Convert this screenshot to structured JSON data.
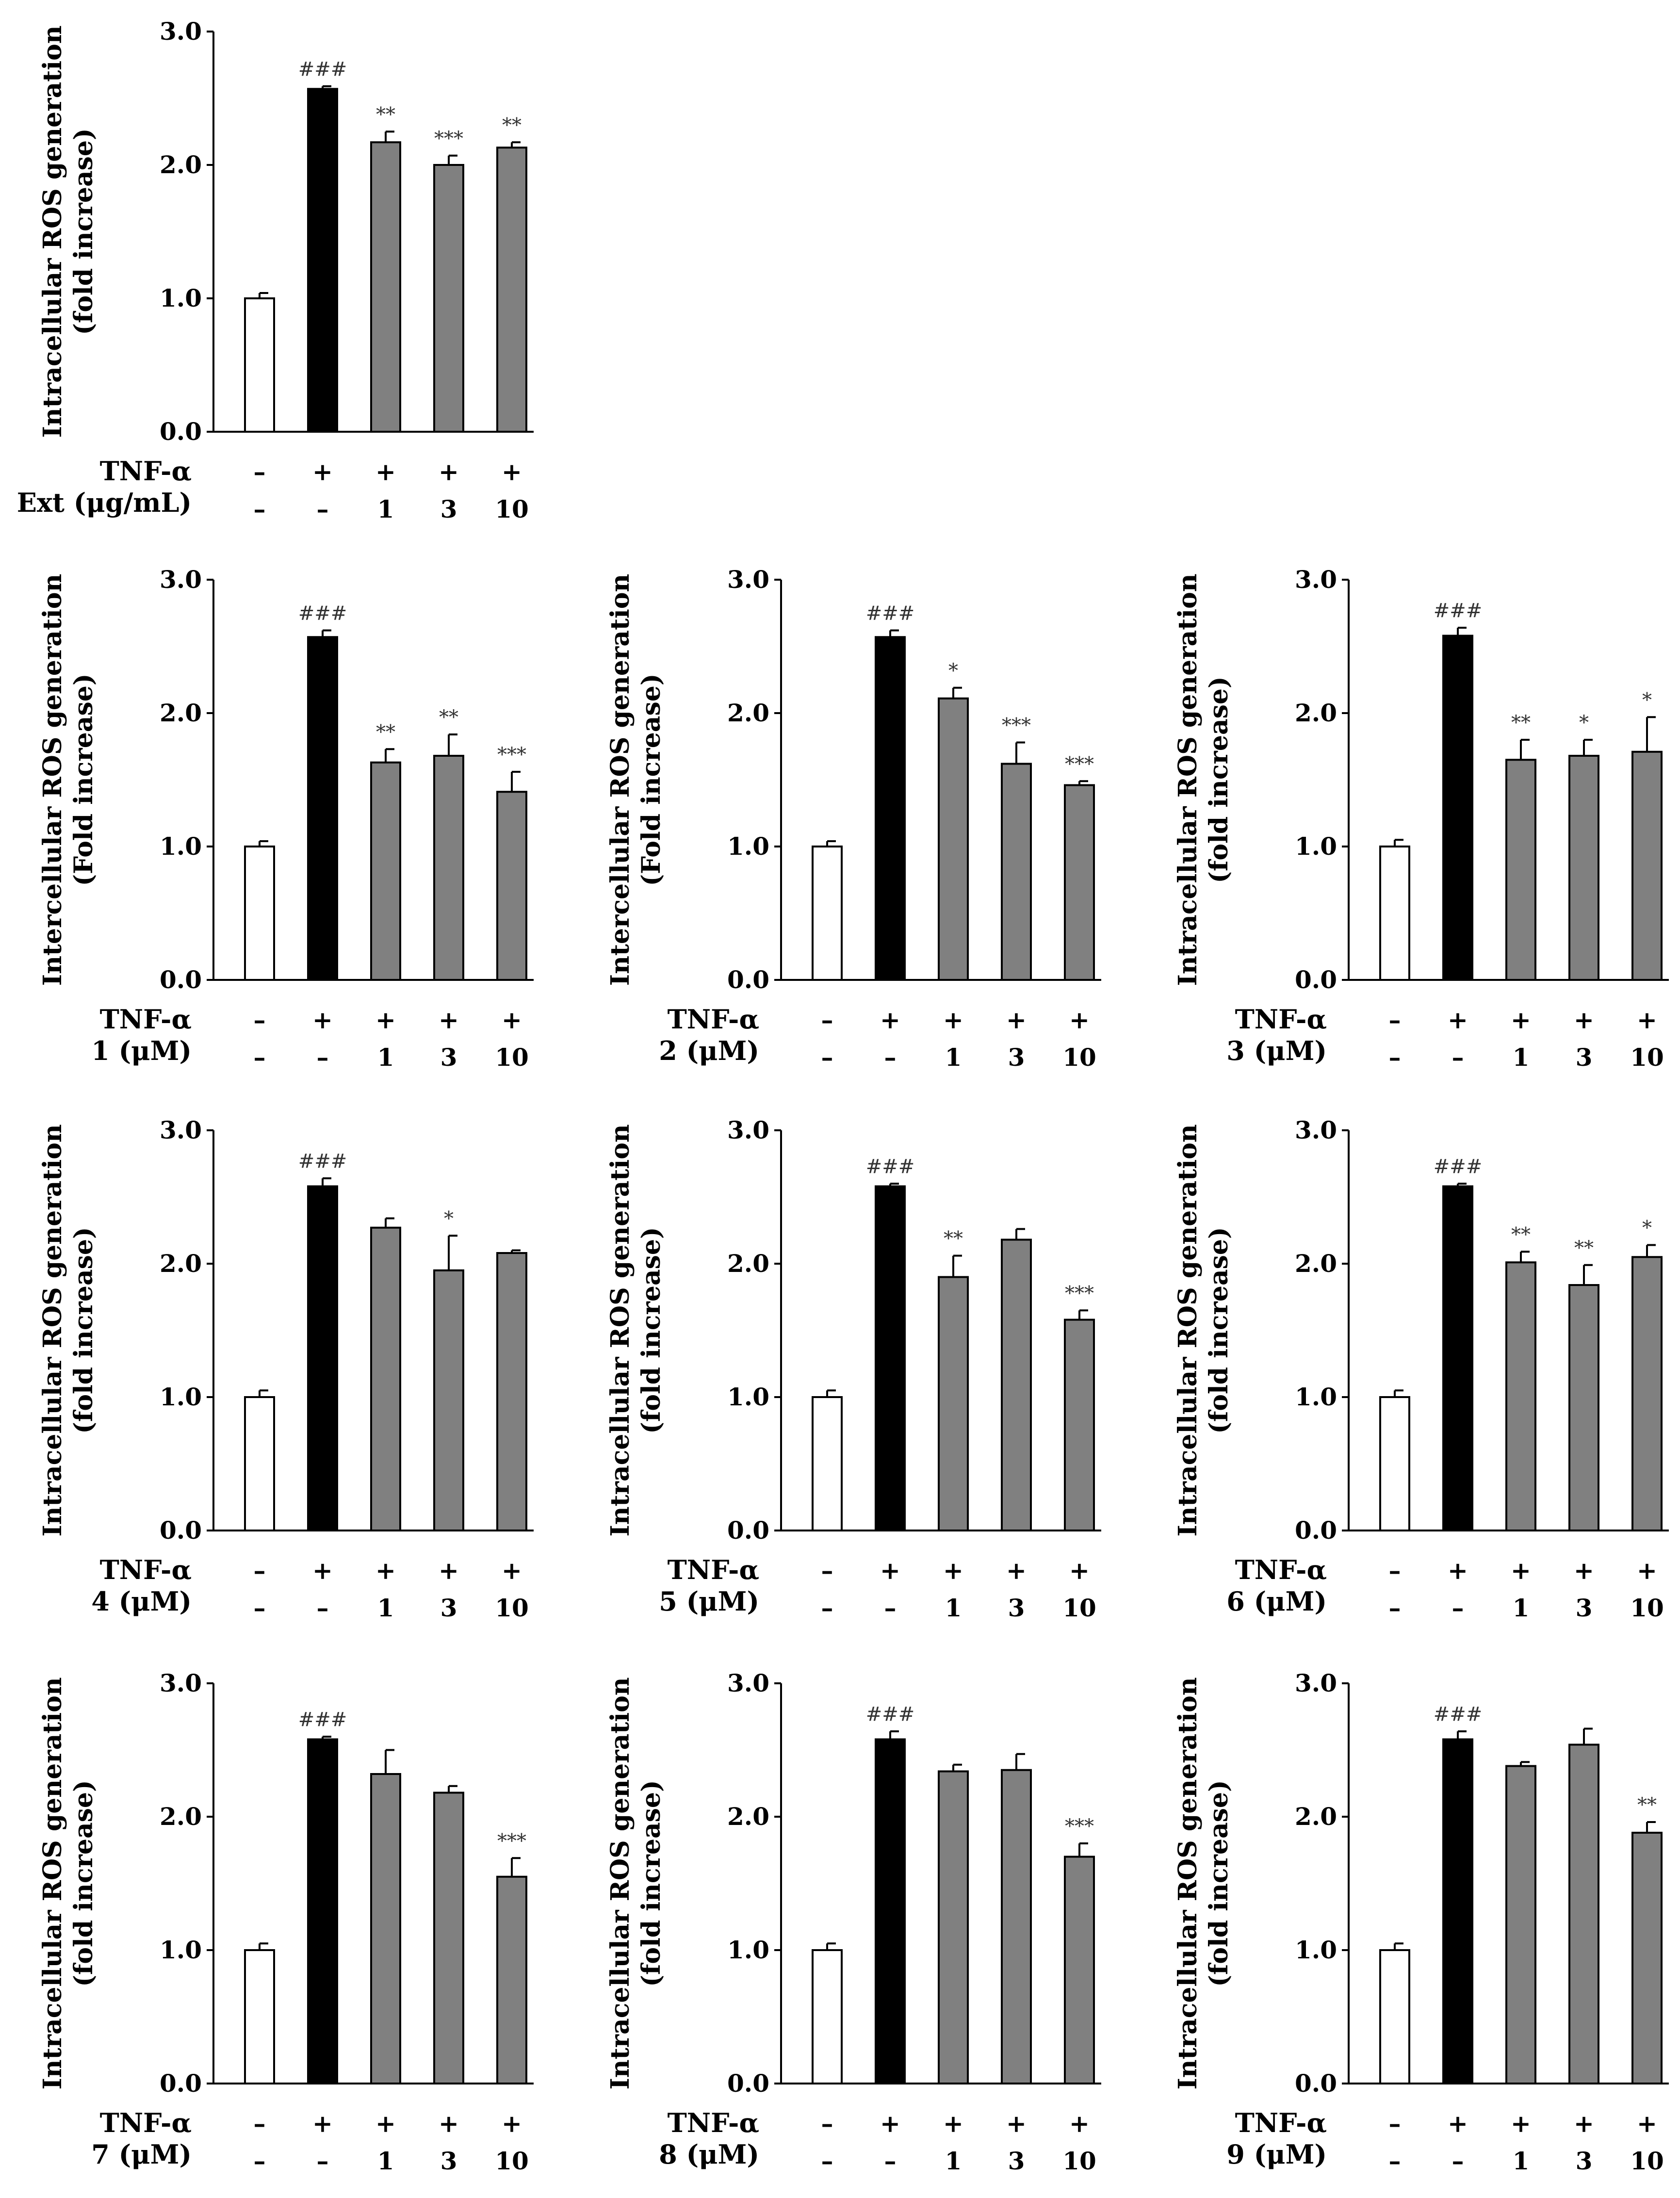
{
  "colors": {
    "control": "#ffffff",
    "tnf": "#000000",
    "treated": "#808080",
    "axis": "#000000"
  },
  "chart_data": [
    {
      "type": "bar",
      "ylabel": [
        "Intracellular ROS generation",
        "(fold increase)"
      ],
      "ylim": [
        0,
        3
      ],
      "yticks": [
        "0.0",
        "1.0",
        "2.0",
        "3.0"
      ],
      "row_labels": [
        "TNF-α",
        "Ext (μg/mL)"
      ],
      "conditions": [
        [
          "–",
          "+",
          "+",
          "+",
          "+"
        ],
        [
          "–",
          "–",
          "1",
          "3",
          "10"
        ]
      ],
      "values": [
        1.0,
        2.57,
        2.17,
        2.0,
        2.13
      ],
      "errors": [
        0.04,
        0.02,
        0.08,
        0.07,
        0.04
      ],
      "significance": [
        "",
        "###",
        "**",
        "***",
        "**"
      ]
    },
    {
      "type": "bar",
      "ylabel": [
        "Intercellular ROS generation",
        "(Fold increase)"
      ],
      "ylim": [
        0,
        3
      ],
      "yticks": [
        "0.0",
        "1.0",
        "2.0",
        "3.0"
      ],
      "row_labels": [
        "TNF-α",
        "1 (μM)"
      ],
      "conditions": [
        [
          "–",
          "+",
          "+",
          "+",
          "+"
        ],
        [
          "–",
          "–",
          "1",
          "3",
          "10"
        ]
      ],
      "values": [
        1.0,
        2.57,
        1.63,
        1.68,
        1.41
      ],
      "errors": [
        0.04,
        0.05,
        0.1,
        0.16,
        0.15
      ],
      "significance": [
        "",
        "###",
        "**",
        "**",
        "***"
      ]
    },
    {
      "type": "bar",
      "ylabel": [
        "Intercellular ROS generation",
        "(Fold increase)"
      ],
      "ylim": [
        0,
        3
      ],
      "yticks": [
        "0.0",
        "1.0",
        "2.0",
        "3.0"
      ],
      "row_labels": [
        "TNF-α",
        "2 (μM)"
      ],
      "conditions": [
        [
          "–",
          "+",
          "+",
          "+",
          "+"
        ],
        [
          "–",
          "–",
          "1",
          "3",
          "10"
        ]
      ],
      "values": [
        1.0,
        2.57,
        2.11,
        1.62,
        1.46
      ],
      "errors": [
        0.04,
        0.05,
        0.08,
        0.16,
        0.03
      ],
      "significance": [
        "",
        "###",
        "*",
        "***",
        "***"
      ]
    },
    {
      "type": "bar",
      "ylabel": [
        "Intracellular ROS generation",
        "(fold increase)"
      ],
      "ylim": [
        0,
        3
      ],
      "yticks": [
        "0.0",
        "1.0",
        "2.0",
        "3.0"
      ],
      "row_labels": [
        "TNF-α",
        "3 (μM)"
      ],
      "conditions": [
        [
          "–",
          "+",
          "+",
          "+",
          "+"
        ],
        [
          "–",
          "–",
          "1",
          "3",
          "10"
        ]
      ],
      "values": [
        1.0,
        2.58,
        1.65,
        1.68,
        1.71
      ],
      "errors": [
        0.05,
        0.06,
        0.15,
        0.12,
        0.26
      ],
      "significance": [
        "",
        "###",
        "**",
        "*",
        "*"
      ]
    },
    {
      "type": "bar",
      "ylabel": [
        "Intracellular ROS generation",
        "(fold increase)"
      ],
      "ylim": [
        0,
        3
      ],
      "yticks": [
        "0.0",
        "1.0",
        "2.0",
        "3.0"
      ],
      "row_labels": [
        "TNF-α",
        "4 (μM)"
      ],
      "conditions": [
        [
          "–",
          "+",
          "+",
          "+",
          "+"
        ],
        [
          "–",
          "–",
          "1",
          "3",
          "10"
        ]
      ],
      "values": [
        1.0,
        2.58,
        2.27,
        1.95,
        2.08
      ],
      "errors": [
        0.05,
        0.06,
        0.07,
        0.26,
        0.02
      ],
      "significance": [
        "",
        "###",
        "",
        "*",
        ""
      ]
    },
    {
      "type": "bar",
      "ylabel": [
        "Intracellular ROS generation",
        "(fold increase)"
      ],
      "ylim": [
        0,
        3
      ],
      "yticks": [
        "0.0",
        "1.0",
        "2.0",
        "3.0"
      ],
      "row_labels": [
        "TNF-α",
        "5 (μM)"
      ],
      "conditions": [
        [
          "–",
          "+",
          "+",
          "+",
          "+"
        ],
        [
          "–",
          "–",
          "1",
          "3",
          "10"
        ]
      ],
      "values": [
        1.0,
        2.58,
        1.9,
        2.18,
        1.58
      ],
      "errors": [
        0.05,
        0.02,
        0.16,
        0.08,
        0.07
      ],
      "significance": [
        "",
        "###",
        "**",
        "",
        "***"
      ]
    },
    {
      "type": "bar",
      "ylabel": [
        "Intracellular ROS generation",
        "(fold increase)"
      ],
      "ylim": [
        0,
        3
      ],
      "yticks": [
        "0.0",
        "1.0",
        "2.0",
        "3.0"
      ],
      "row_labels": [
        "TNF-α",
        "6 (μM)"
      ],
      "conditions": [
        [
          "–",
          "+",
          "+",
          "+",
          "+"
        ],
        [
          "–",
          "–",
          "1",
          "3",
          "10"
        ]
      ],
      "values": [
        1.0,
        2.58,
        2.01,
        1.84,
        2.05
      ],
      "errors": [
        0.05,
        0.02,
        0.08,
        0.15,
        0.09
      ],
      "significance": [
        "",
        "###",
        "**",
        "**",
        "*"
      ]
    },
    {
      "type": "bar",
      "ylabel": [
        "Intracellular ROS generation",
        "(fold increase)"
      ],
      "ylim": [
        0,
        3
      ],
      "yticks": [
        "0.0",
        "1.0",
        "2.0",
        "3.0"
      ],
      "row_labels": [
        "TNF-α",
        "7 (μM)"
      ],
      "conditions": [
        [
          "–",
          "+",
          "+",
          "+",
          "+"
        ],
        [
          "–",
          "–",
          "1",
          "3",
          "10"
        ]
      ],
      "values": [
        1.0,
        2.58,
        2.32,
        2.18,
        1.55
      ],
      "errors": [
        0.05,
        0.02,
        0.18,
        0.05,
        0.14
      ],
      "significance": [
        "",
        "###",
        "",
        "",
        "***"
      ]
    },
    {
      "type": "bar",
      "ylabel": [
        "Intracellular ROS generation",
        "(fold increase)"
      ],
      "ylim": [
        0,
        3
      ],
      "yticks": [
        "0.0",
        "1.0",
        "2.0",
        "3.0"
      ],
      "row_labels": [
        "TNF-α",
        "8 (μM)"
      ],
      "conditions": [
        [
          "–",
          "+",
          "+",
          "+",
          "+"
        ],
        [
          "–",
          "–",
          "1",
          "3",
          "10"
        ]
      ],
      "values": [
        1.0,
        2.58,
        2.34,
        2.35,
        1.7
      ],
      "errors": [
        0.05,
        0.06,
        0.05,
        0.12,
        0.1
      ],
      "significance": [
        "",
        "###",
        "",
        "",
        "***"
      ]
    },
    {
      "type": "bar",
      "ylabel": [
        "Intracellular ROS generation",
        "(fold increase)"
      ],
      "ylim": [
        0,
        3
      ],
      "yticks": [
        "0.0",
        "1.0",
        "2.0",
        "3.0"
      ],
      "row_labels": [
        "TNF-α",
        "9 (μM)"
      ],
      "conditions": [
        [
          "–",
          "+",
          "+",
          "+",
          "+"
        ],
        [
          "–",
          "–",
          "1",
          "3",
          "10"
        ]
      ],
      "values": [
        1.0,
        2.58,
        2.38,
        2.54,
        1.88
      ],
      "errors": [
        0.05,
        0.06,
        0.03,
        0.12,
        0.08
      ],
      "significance": [
        "",
        "###",
        "",
        "",
        "**"
      ]
    }
  ]
}
